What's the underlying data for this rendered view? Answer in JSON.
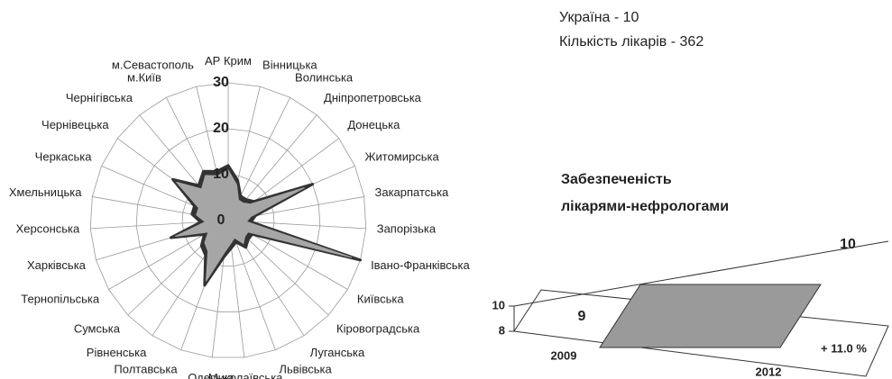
{
  "chart_data": [
    {
      "type": "radar",
      "subtitle": [
        "Україна - 10",
        "Кількість лікарів - 362"
      ],
      "categories": [
        "АР Крим",
        "Вінницька",
        "Волинська",
        "Дніпропетровська",
        "Донецька",
        "Житомирська",
        "Закарпатська",
        "Запорізька",
        "Івано-Франківська",
        "Київська",
        "Кіровоградська",
        "Луганська",
        "Львівська",
        "Миколаївська",
        "Одеська",
        "Полтавська",
        "Рівненська",
        "Сумська",
        "Тернопільська",
        "Харківська",
        "Херсонська",
        "Хмельницька",
        "Черкаська",
        "Чернівецька",
        "Чернігівська",
        "м.Київ",
        "м.Севастополь"
      ],
      "series": [
        {
          "color": "#333333",
          "values": [
            12,
            9,
            6,
            6,
            7,
            20,
            6,
            5,
            30,
            6,
            6,
            7,
            5,
            6,
            8,
            15,
            9,
            8,
            6,
            13,
            6,
            8,
            8,
            15,
            10,
            12,
            11
          ]
        },
        {
          "color": "#a6a6a6",
          "values": [
            11,
            8,
            5,
            5,
            6,
            18,
            5,
            4,
            28,
            5,
            5,
            6,
            4,
            5,
            7,
            14,
            8,
            7,
            5,
            12,
            5,
            7,
            7,
            14,
            9,
            11,
            10
          ]
        }
      ],
      "ylim": [
        0,
        30
      ],
      "yticks": [
        0,
        10,
        20,
        30
      ],
      "grid": true
    },
    {
      "type": "area3d",
      "title": [
        "Забезпеченість",
        "лікарями-нефрологами"
      ],
      "categories": [
        "2009",
        "2012"
      ],
      "values": [
        9,
        10
      ],
      "color": "#9a9a9a",
      "ylim": [
        8,
        10
      ],
      "yticks": [
        8,
        10
      ],
      "annotation": "+ 11.0 %"
    }
  ]
}
